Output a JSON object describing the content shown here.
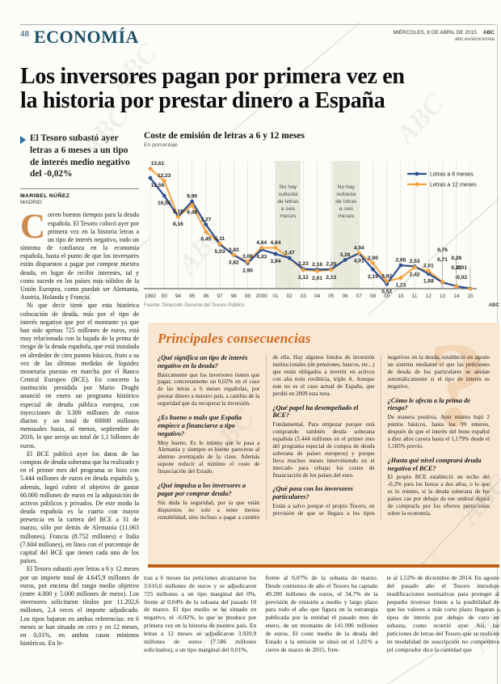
{
  "watermark": "ABC",
  "header": {
    "page_number": "48",
    "section": "ECONOMÍA",
    "date_line": "MIÉRCOLES, 8 DE ABRIL DE 2015",
    "brand": "ABC",
    "site": "abc.es/economia"
  },
  "headline_lines": [
    "Los inversores pagan por primera vez en",
    "la historia por prestar dinero a España"
  ],
  "standfirst": "El Tesoro subastó ayer letras a 6 meses a un tipo de interés medio negativo del -0,02%",
  "byline": {
    "author": "MARIBEL NÚÑEZ",
    "location": "MADRID"
  },
  "article": {
    "drop_cap": "C",
    "paragraphs": [
      "orren buenos tiempos para la deuda española. El Tesoro colocó ayer por primera vez en la historia letras a un tipo de interés negativo, todo un síntoma de confianza en la economía española, hasta el punto de que los inversores están dispuestos a pagar por comprar nuestra deuda, en lugar de recibir intereses, tal y como sucede en los países más sólidos de la Unión Europea, como puedan ser Alemania, Austria, Holanda y Francia.",
      "Ni que decir tiene que esta histórica colocación de deuda, más por el tipo de interés negativo que por el montante ya que han sido apenas 725 millones de euros, está muy relacionada con la bajada de la prima de riesgo de la deuda española, que está instalada en alrededor de cien puntos básicos, fruto a su vez de las últimas medidas de liquidez monetaria puestas en marcha por el Banco Central Europeo (BCE). En concreto la institución presidida por Mario Draghi anunció en enero un programa histórico especial de deuda pública europea, con inyecciones de 3.300 millones de euros diarios y un total de 60000 millones mensuales hasta, al menos, septiembre de 2016, lo que arroja un total de 1,1 billones de euros.",
      "El BCE publicó ayer los datos de las compras de deuda soberana que ha realizado y en el primer mes del programa se hizo con 5.444 millones de euros en deuda española y, además, logró cubrir el objetivo de gastar 60.000 millones de euros en la adquisición de activos públicos y privados. De este modo la deuda española es la cuarta con mayor presencia en la cartera del BCE a 31 de marzo, sólo por detrás de Alemania (11.063 millones), Francia (8.752 millones) e Italia (7.604 millones), en línea con el porcentaje de capital del BCE que tienen cada uno de los países.",
      "El Tesoro subastó ayer letras a 6 y 12 meses por un importe total de 4.645,9 millones de euros, por encima del rango medio objetivo (entre 4.000 y 5.000 millones de euros). Los inversores solicitaron títulos por 11.202,6 millones, 2,4 veces el importe adjudicado. Los tipos bajaron en ambas referencias: en 6 meses se han situado en cero y en 12 meses, en 0,01%, en ambos casos mínimos históricos. En le-"
    ]
  },
  "chart_data": {
    "type": "line",
    "title": "Coste de emisión de letras a 6 y 12 meses",
    "subtitle": "En porcentaje",
    "x": [
      "1992",
      "93",
      "94",
      "95",
      "96",
      "97",
      "98",
      "99",
      "2000",
      "01",
      "02",
      "03",
      "04",
      "05",
      "06",
      "07",
      "08",
      "09",
      "10",
      "11",
      "12",
      "13",
      "14",
      "15"
    ],
    "series": [
      {
        "name": "Letras a 6 meses",
        "color": "#31508f",
        "marker": "circle",
        "values": [
          12.56,
          10.55,
          8.19,
          9.9,
          7.27,
          5.03,
          3.82,
          2.9,
          4.43,
          3.94,
          3.47,
          2.23,
          2.16,
          2.2,
          3.26,
          4.01,
          2.19,
          0.52,
          2.65,
          2.53,
          1.68,
          0.71,
          0.28,
          0.01
        ],
        "labels": [
          "12,56",
          "10,55",
          "8,19",
          "9,90",
          "7,27",
          "5,03",
          "3,82",
          "2,90",
          "4,43",
          "3,94",
          "3,47",
          "2,23",
          "2,16",
          "2,20",
          "3,26",
          "4,01",
          "2,19",
          "0,52",
          "2,65",
          "2,53",
          "1,68",
          "0,71",
          "0,28",
          "0,01"
        ]
      },
      {
        "name": "Letras a 12 meses",
        "color": "#f2a33c",
        "marker": "diamond",
        "values": [
          13.61,
          12.23,
          8.16,
          9.48,
          6.45,
          5.11,
          3.83,
          3.06,
          4.64,
          4.64,
          3.47,
          2.12,
          2.01,
          2.13,
          3.26,
          4.04,
          2.9,
          0.82,
          1.23,
          2.42,
          2.01,
          0.76,
          0.27,
          -0.02
        ],
        "labels": [
          "13,61",
          "12,23",
          "8,16",
          "9,48",
          "6,45",
          "5,11",
          "3,83",
          "3,06",
          "4,64",
          "4,64",
          null,
          "2,12",
          "2,01",
          "2,13",
          null,
          "4,04",
          "2,90",
          "0,82",
          "1,23",
          "2,42",
          "2,01",
          "0,76",
          "0,27",
          "-0,02"
        ]
      }
    ],
    "annotations": [
      {
        "text": "No hay subasta de letras a seis meses",
        "from_index": 9.0,
        "to_index": 10.8
      },
      {
        "text": "No hay subasta de letras a seis meses",
        "from_index": 13.1,
        "to_index": 15.05
      }
    ],
    "ylim": [
      0,
      14.5
    ],
    "grid": true,
    "legend_position": "top-right",
    "source": "Fuente: Dirección General del Tesoro Público",
    "credit": "ABC"
  },
  "qa_box": {
    "title": "Principales consecuencias",
    "question_mark": "?",
    "items": [
      {
        "q": "¿Qué significa un tipo de interés negativo en la deuda?",
        "a": "Básicamente que los inversores tienen que pagar, concretamente un 0,02% en el caso de las letras a 6 meses españolas, por prestar dinero a nuestro país, a cambio de la seguridad que da recuperar la inversión."
      },
      {
        "q": "¿Es bueno o malo que España empiece a financiarse a tipo negativo?",
        "a": "Muy bueno. Es lo mismo que le pasa a Alemania y siempre es bueno parecerse al alumno aventajado de la clase. Además supone reducir al mínimo el coste de financiación del Estado."
      },
      {
        "q": "¿Qué impulsa a los inversores a pagar por comprar deuda?",
        "a": "Sin duda la seguridad, por la que están dispuestos no solo a tener menos rentabilidad, sino incluso a pagar a cambio de ella. Hay algunos fondos de inversión institucionales (de pensiones, bancos, etc...) que están obligados a invertir en activos con alta nota crediticia, triple A. Aunque este no es el caso actual de España, que perdió en 2009 esta nota."
      },
      {
        "q": "¿Qué papel ha desempeñado el BCE?",
        "a": "Fundamental. Para empezar porque está comprando también deuda soberana española (5.444 millones en el primer mes del programa especial de compra de deuda soberana de países europeos) y porque lleva muchos meses interviniendo en el mercado para rebajar los costes de financiación de los países del euro."
      },
      {
        "q": "¿Qué pasa con los inversores particulares?",
        "a": "Están a salvo porque el propio Tesoro, en previsión de que se llegara a los tipos negativos en la deuda, estableció en agosto un sistema mediante el que las peticiones de deuda de los particulares se anulan automáticamente si el tipo de interés es negativo."
      },
      {
        "q": "¿Cómo le afecta a la prima de riesgo?",
        "a": "De manera positiva. Ayer mismo bajó 2 puntos básicos, hasta los 99 enteros, después de que el interés del bono español a diez años cayera hasta el 1,179% desde el 1,185% previo."
      },
      {
        "q": "¿Hasta qué nivel comprará deuda negativa el BCE?",
        "a": "El propio BCE estableció un techo del -0,2% para los bonos a dos años, o lo que es lo mismo, si la deuda soberana de los países cae por debajo de ese umbral dejará de comprarla por los efectos perniciosos sobre la economía."
      }
    ]
  },
  "bottom_columns": [
    "tras a 6 meses las peticiones alcanzaron los 3.616,6 millones de euros y se adjudicaron 725 millones a un tipo marginal del 0%, frente al 0,04% de la subasta del pasado 10 de marzo. El tipo medio se ha situado en negativo, el -0,02%, lo que se produce por primera vez en la historia de nuestro país. En letras a 12 meses se adjudicaron 3.920,9 millones de euros (7.586 millones solicitados), a un tipo marginal del 0,01%,",
    "frente al 0,07% de la subasta de marzo. Desde comienzo de año el Tesoro ha captado 49.200 millones de euros, el 34,7% de la previsión de emisión a medio y largo plazo para todo el año que figura en la estrategia publicada por la entidad el pasado mes de enero, de un montante de 141.996 millones de euros. El coste medio de la deuda del Estado a la emisión se situó en el 1,01% a cierre de marzo de 2015, fren-",
    "te al 1,52% de diciembre de 2014. En agosto del pasado año el Tesoro introdujo modificaciones normativas para proteger al pequeño inversor frente a la posibilidad de que los valores a más corto plazo llegaran a tipos de interés por debajo de cero en subasta, como ocurrió ayer. Así, las peticiones de letras del Tesoro que se realicen en modalidad de suscripción no competitiva (el comprador dice la cantidad que"
  ],
  "colors": {
    "accent_blue": "#31508f",
    "accent_orange": "#f2a33c",
    "section_title": "#1f5168",
    "box_background": "#f8e8d3",
    "box_title": "#d2691e",
    "box_border": "#bf5e17",
    "drop_cap": "#cd8a4c",
    "band": "#e9e9db"
  }
}
